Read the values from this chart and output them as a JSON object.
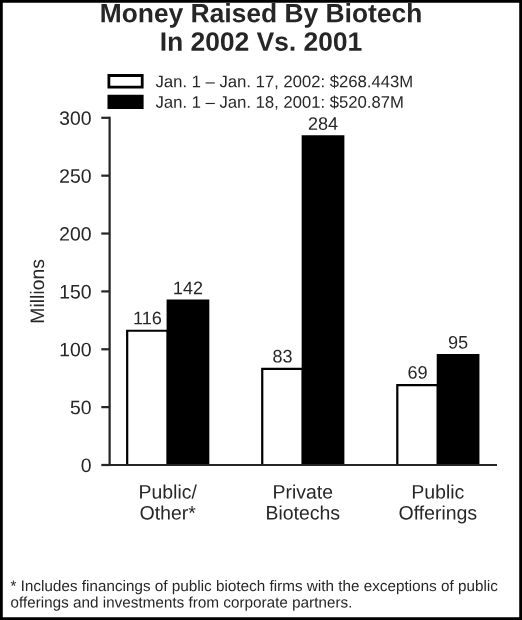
{
  "chart_data": {
    "type": "bar",
    "title": "Money Raised By Biotech\nIn 2002 Vs. 2001",
    "ylabel": "Millions",
    "categories": [
      "Public/\nOther*",
      "Private\nBiotechs",
      "Public\nOfferings"
    ],
    "series": [
      {
        "name": "Jan. 1 – Jan. 17, 2002: $268.443M",
        "color": "#ffffff",
        "values": [
          116,
          83,
          69
        ]
      },
      {
        "name": "Jan. 1 – Jan. 18, 2001: $520.87M",
        "color": "#000000",
        "values": [
          142,
          284,
          95
        ]
      }
    ],
    "ylim": [
      0,
      300
    ],
    "yticks": [
      0,
      50,
      100,
      150,
      200,
      250,
      300
    ],
    "data_labels": true,
    "legend": "top",
    "grid": false,
    "annotations": [
      "* Includes financings of public biotech firms with the exceptions of public offerings and investments from corporate partners."
    ]
  }
}
